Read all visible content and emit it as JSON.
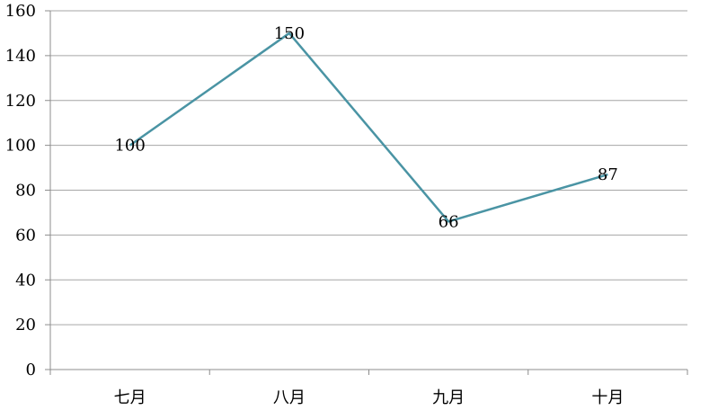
{
  "chart_data": {
    "type": "line",
    "categories": [
      "七月",
      "八月",
      "九月",
      "十月"
    ],
    "series": [
      {
        "values": [
          100,
          150,
          66,
          87
        ]
      }
    ],
    "data_labels": [
      "100",
      "150",
      "66",
      "87"
    ],
    "ylim": [
      0,
      160
    ],
    "yticks": [
      "0",
      "20",
      "40",
      "60",
      "80",
      "100",
      "120",
      "140",
      "160"
    ],
    "grid": true,
    "legend": "none",
    "colors": {
      "series": "#4a94a4"
    }
  }
}
